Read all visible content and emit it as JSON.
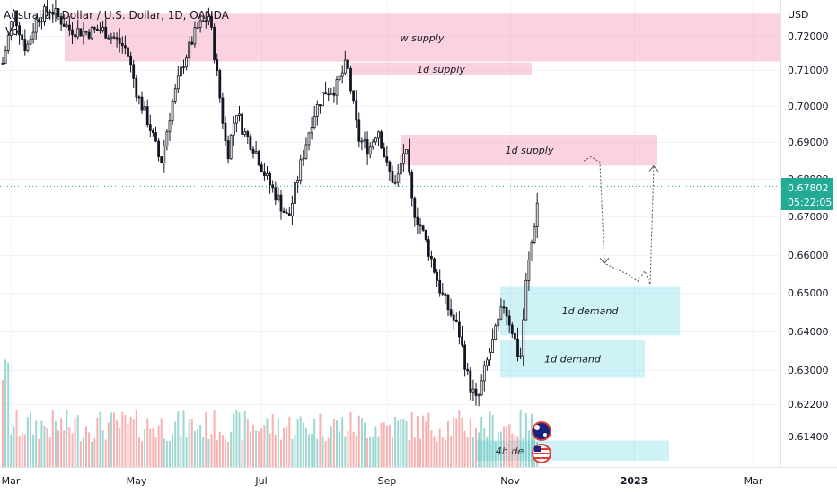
{
  "chart_data": {
    "type": "candlestick",
    "title": "Australian Dollar / U.S. Dollar, 1D, OANDA",
    "volume_label": "Vol",
    "currency": "USD",
    "y_ticks": [
      "0.72000",
      "0.71000",
      "0.70000",
      "0.69000",
      "0.68000",
      "0.67000",
      "0.66000",
      "0.65000",
      "0.64000",
      "0.63000",
      "0.62200",
      "0.61400"
    ],
    "x_ticks": [
      {
        "label": "Mar",
        "bold": false
      },
      {
        "label": "May",
        "bold": false
      },
      {
        "label": "Jul",
        "bold": false
      },
      {
        "label": "Sep",
        "bold": false
      },
      {
        "label": "Nov",
        "bold": false
      },
      {
        "label": "2023",
        "bold": true
      },
      {
        "label": "Mar",
        "bold": false
      }
    ],
    "current_price": "0.67802",
    "countdown": "05:22:05",
    "zones": [
      {
        "label": "w supply",
        "type": "supply",
        "low": 0.7125,
        "high": 0.7265
      },
      {
        "label": "1d supply",
        "type": "supply",
        "low": 0.7085,
        "high": 0.7122
      },
      {
        "label": "1d supply",
        "type": "supply",
        "low": 0.6836,
        "high": 0.692
      },
      {
        "label": "1d demand",
        "type": "demand",
        "low": 0.639,
        "high": 0.6518
      },
      {
        "label": "1d demand",
        "type": "demand",
        "low": 0.6282,
        "high": 0.6378
      },
      {
        "label": "4h de",
        "type": "demand",
        "low": 0.608,
        "high": 0.613
      }
    ],
    "projection": [
      0.6848,
      0.686,
      0.6845,
      0.6578,
      0.6548,
      0.653,
      0.6558,
      0.6522,
      0.6835
    ]
  },
  "ui": {
    "country_icons": [
      "australia-flag",
      "usa-flag"
    ]
  }
}
